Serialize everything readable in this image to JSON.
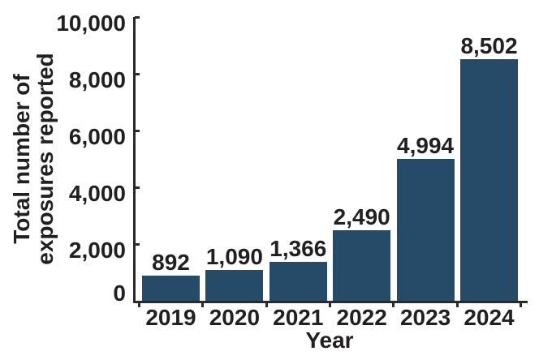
{
  "chart_data": {
    "type": "bar",
    "title": "",
    "categories": [
      "2019",
      "2020",
      "2021",
      "2022",
      "2023",
      "2024"
    ],
    "values": [
      892,
      1090,
      1366,
      2490,
      4994,
      8502
    ],
    "value_labels": [
      "892",
      "1,090",
      "1,366",
      "2,490",
      "4,994",
      "8,502"
    ],
    "xlabel": "Year",
    "ylabel_lines": [
      "Total number of",
      "exposures reported"
    ],
    "yticks": [
      "0",
      "2,000",
      "4,000",
      "6,000",
      "8,000",
      "10,000"
    ],
    "ylim": [
      0,
      10000
    ],
    "grid": false,
    "legend": "none",
    "colors": {
      "bar": "#254b69",
      "text": "#221f20",
      "axis": "#2b292a",
      "background": "#ffffff"
    }
  }
}
